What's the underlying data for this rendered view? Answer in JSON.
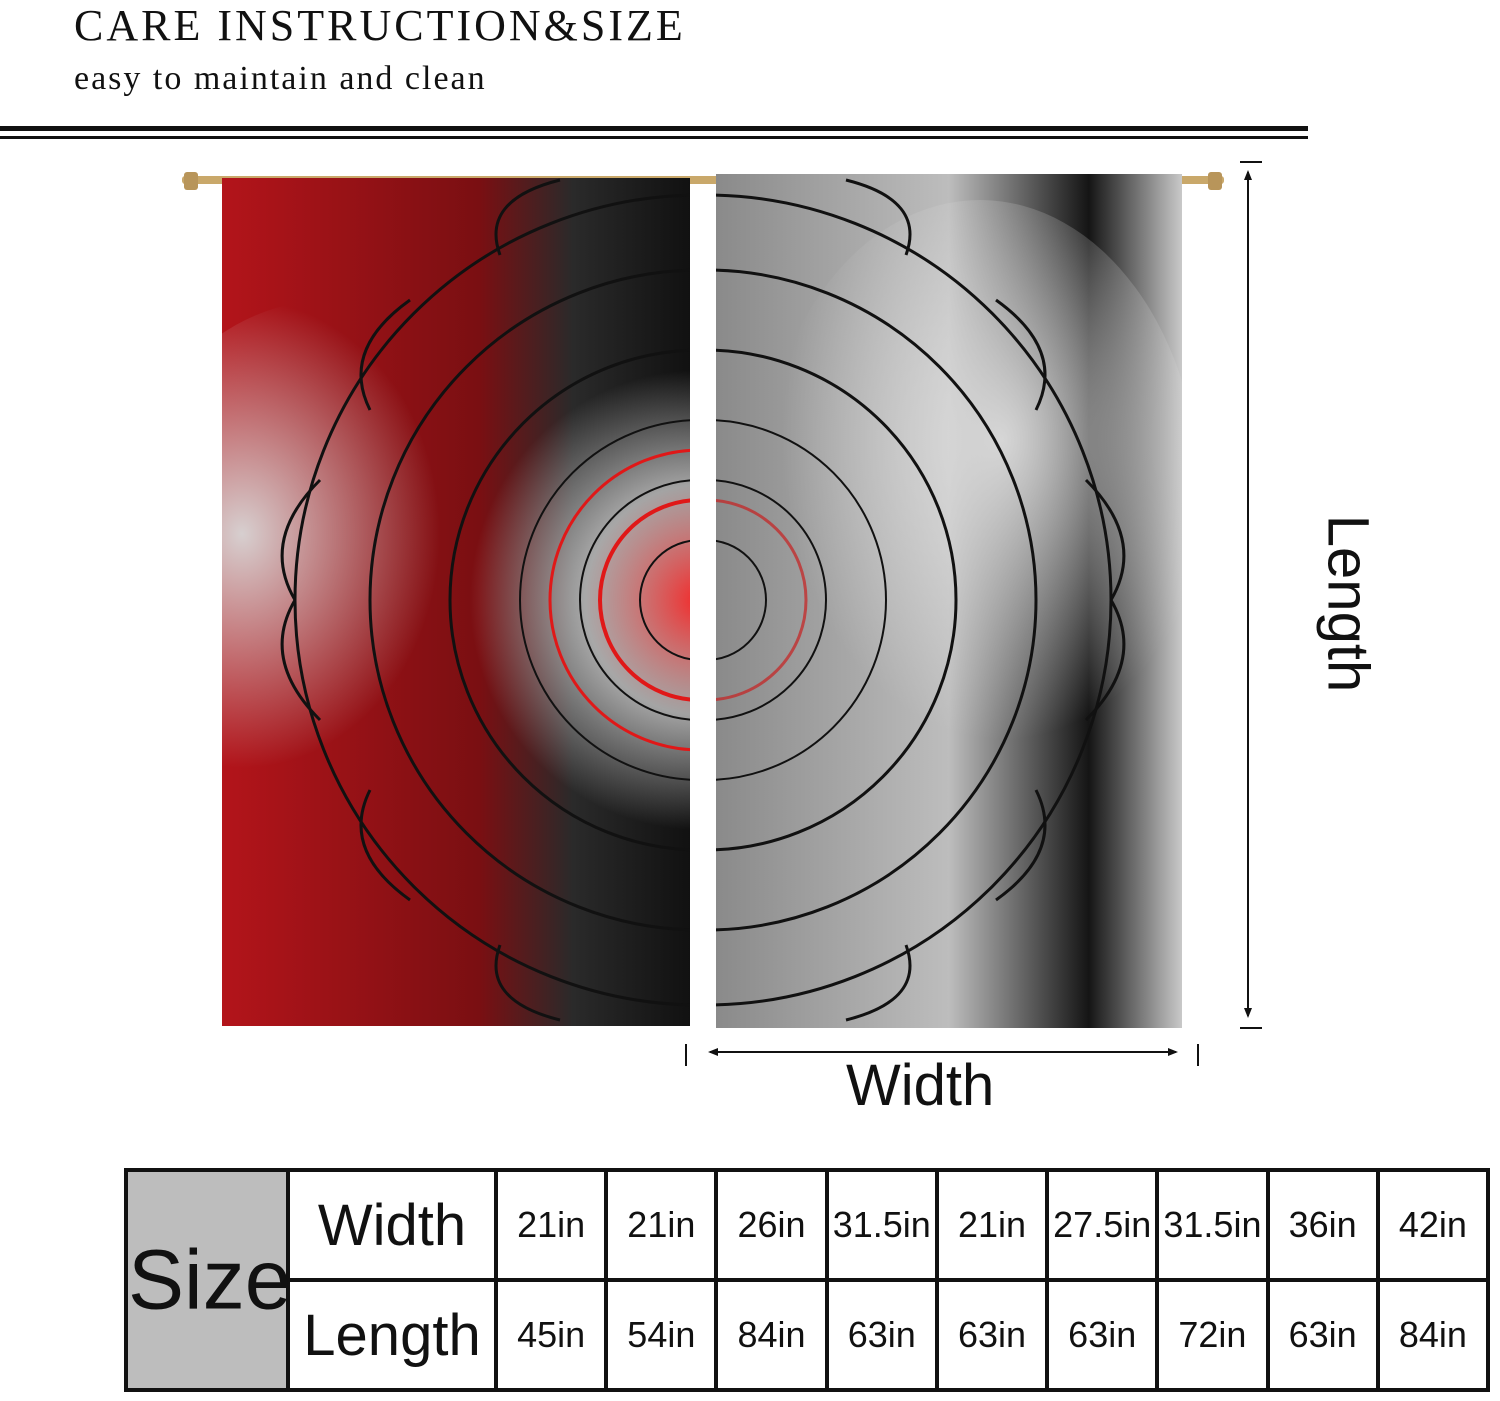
{
  "header": {
    "title": "CARE INSTRUCTION&SIZE",
    "subtitle": "easy to maintain and clean"
  },
  "figure": {
    "width_label": "Width",
    "length_label": "Length"
  },
  "size_table": {
    "header": "Size",
    "rows": [
      {
        "label": "Width",
        "values": [
          "21in",
          "21in",
          "26in",
          "31.5in",
          "21in",
          "27.5in",
          "31.5in",
          "36in",
          "42in"
        ]
      },
      {
        "label": "Length",
        "values": [
          "45in",
          "54in",
          "84in",
          "63in",
          "63in",
          "63in",
          "72in",
          "63in",
          "84in"
        ]
      }
    ]
  },
  "colors": {
    "red": "#b3141a",
    "black": "#111111",
    "grey": "#9a9a9a",
    "table_header_bg": "#bdbdbd"
  }
}
